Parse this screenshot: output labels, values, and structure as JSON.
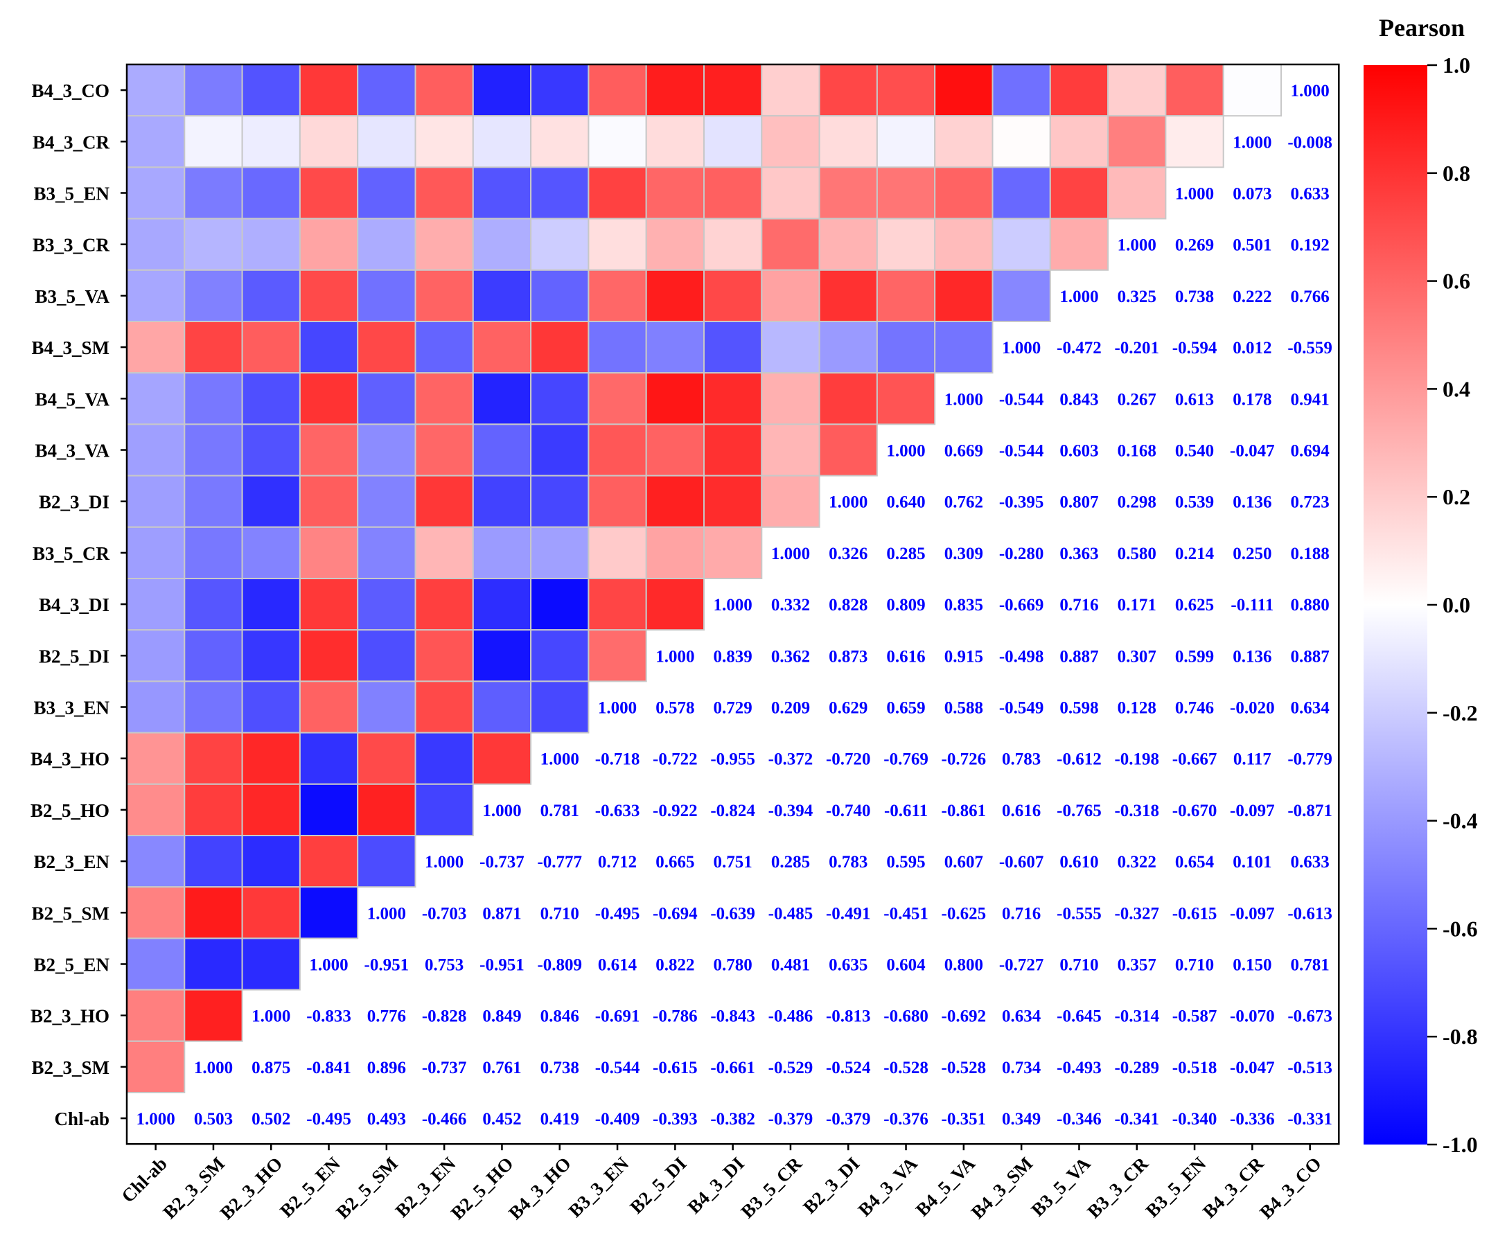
{
  "chart_data": {
    "type": "heatmap",
    "title": "",
    "legend_title": "Pearson",
    "colorbar": {
      "range": [
        -1.0,
        1.0
      ],
      "ticks": [
        "1.0",
        "0.8",
        "0.6",
        "0.4",
        "0.2",
        "0.0",
        "-0.2",
        "-0.4",
        "-0.6",
        "-0.8",
        "-1.0"
      ],
      "colors": {
        "negative": "#0000ff",
        "zero": "#ffffff",
        "positive": "#ff0000"
      }
    },
    "value_text_color": "#0000ff",
    "variables": [
      "Chl-ab",
      "B2_3_SM",
      "B2_3_HO",
      "B2_5_EN",
      "B2_5_SM",
      "B2_3_EN",
      "B2_5_HO",
      "B4_3_HO",
      "B3_3_EN",
      "B2_5_DI",
      "B4_3_DI",
      "B3_5_CR",
      "B2_3_DI",
      "B4_3_VA",
      "B4_5_VA",
      "B4_3_SM",
      "B3_5_VA",
      "B3_3_CR",
      "B3_5_EN",
      "B4_3_CR",
      "B4_3_CO"
    ],
    "matrix": [
      [
        1.0,
        0.503,
        0.502,
        -0.495,
        0.493,
        -0.466,
        0.452,
        0.419,
        -0.409,
        -0.393,
        -0.382,
        -0.379,
        -0.379,
        -0.376,
        -0.351,
        0.349,
        -0.346,
        -0.341,
        -0.34,
        -0.336,
        -0.331
      ],
      [
        0.503,
        1.0,
        0.875,
        -0.841,
        0.896,
        -0.737,
        0.761,
        0.738,
        -0.544,
        -0.615,
        -0.661,
        -0.529,
        -0.524,
        -0.528,
        -0.528,
        0.734,
        -0.493,
        -0.289,
        -0.518,
        -0.047,
        -0.513
      ],
      [
        0.502,
        0.875,
        1.0,
        -0.833,
        0.776,
        -0.828,
        0.849,
        0.846,
        -0.691,
        -0.786,
        -0.843,
        -0.486,
        -0.813,
        -0.68,
        -0.692,
        0.634,
        -0.645,
        -0.314,
        -0.587,
        -0.07,
        -0.673
      ],
      [
        -0.495,
        -0.841,
        -0.833,
        1.0,
        -0.951,
        0.753,
        -0.951,
        -0.809,
        0.614,
        0.822,
        0.78,
        0.481,
        0.635,
        0.604,
        0.8,
        -0.727,
        0.71,
        0.357,
        0.71,
        0.15,
        0.781
      ],
      [
        0.493,
        0.896,
        0.776,
        -0.951,
        1.0,
        -0.703,
        0.871,
        0.71,
        -0.495,
        -0.694,
        -0.639,
        -0.485,
        -0.491,
        -0.451,
        -0.625,
        0.716,
        -0.555,
        -0.327,
        -0.615,
        -0.097,
        -0.613
      ],
      [
        -0.466,
        -0.737,
        -0.828,
        0.753,
        -0.703,
        1.0,
        -0.737,
        -0.777,
        0.712,
        0.665,
        0.751,
        0.285,
        0.783,
        0.595,
        0.607,
        -0.607,
        0.61,
        0.322,
        0.654,
        0.101,
        0.633
      ],
      [
        0.452,
        0.761,
        0.849,
        -0.951,
        0.871,
        -0.737,
        1.0,
        0.781,
        -0.633,
        -0.922,
        -0.824,
        -0.394,
        -0.74,
        -0.611,
        -0.861,
        0.616,
        -0.765,
        -0.318,
        -0.67,
        -0.097,
        -0.871
      ],
      [
        0.419,
        0.738,
        0.846,
        -0.809,
        0.71,
        -0.777,
        0.781,
        1.0,
        -0.718,
        -0.722,
        -0.955,
        -0.372,
        -0.72,
        -0.769,
        -0.726,
        0.783,
        -0.612,
        -0.198,
        -0.667,
        0.117,
        -0.779
      ],
      [
        -0.409,
        -0.544,
        -0.691,
        0.614,
        -0.495,
        0.712,
        -0.633,
        -0.718,
        1.0,
        0.578,
        0.729,
        0.209,
        0.629,
        0.659,
        0.588,
        -0.549,
        0.598,
        0.128,
        0.746,
        -0.02,
        0.634
      ],
      [
        -0.393,
        -0.615,
        -0.786,
        0.822,
        -0.694,
        0.665,
        -0.922,
        -0.722,
        0.578,
        1.0,
        0.839,
        0.362,
        0.873,
        0.616,
        0.915,
        -0.498,
        0.887,
        0.307,
        0.599,
        0.136,
        0.887
      ],
      [
        -0.382,
        -0.661,
        -0.843,
        0.78,
        -0.639,
        0.751,
        -0.824,
        -0.955,
        0.729,
        0.839,
        1.0,
        0.332,
        0.828,
        0.809,
        0.835,
        -0.669,
        0.716,
        0.171,
        0.625,
        -0.111,
        0.88
      ],
      [
        -0.379,
        -0.529,
        -0.486,
        0.481,
        -0.485,
        0.285,
        -0.394,
        -0.372,
        0.209,
        0.362,
        0.332,
        1.0,
        0.326,
        0.285,
        0.309,
        -0.28,
        0.363,
        0.58,
        0.214,
        0.25,
        0.188
      ],
      [
        -0.379,
        -0.524,
        -0.813,
        0.635,
        -0.491,
        0.783,
        -0.74,
        -0.72,
        0.629,
        0.873,
        0.828,
        0.326,
        1.0,
        0.64,
        0.762,
        -0.395,
        0.807,
        0.298,
        0.539,
        0.136,
        0.723
      ],
      [
        -0.376,
        -0.528,
        -0.68,
        0.604,
        -0.451,
        0.595,
        -0.611,
        -0.769,
        0.659,
        0.616,
        0.809,
        0.285,
        0.64,
        1.0,
        0.669,
        -0.544,
        0.603,
        0.168,
        0.54,
        -0.047,
        0.694
      ],
      [
        -0.351,
        -0.528,
        -0.692,
        0.8,
        -0.625,
        0.607,
        -0.861,
        -0.726,
        0.588,
        0.915,
        0.835,
        0.309,
        0.762,
        0.669,
        1.0,
        -0.544,
        0.843,
        0.267,
        0.613,
        0.178,
        0.941
      ],
      [
        0.349,
        0.734,
        0.634,
        -0.727,
        0.716,
        -0.607,
        0.616,
        0.783,
        -0.549,
        -0.498,
        -0.669,
        -0.28,
        -0.395,
        -0.544,
        -0.544,
        1.0,
        -0.472,
        -0.201,
        -0.594,
        0.012,
        -0.559
      ],
      [
        -0.346,
        -0.493,
        -0.645,
        0.71,
        -0.555,
        0.61,
        -0.765,
        -0.612,
        0.598,
        0.887,
        0.716,
        0.363,
        0.807,
        0.603,
        0.843,
        -0.472,
        1.0,
        0.325,
        0.738,
        0.222,
        0.766
      ],
      [
        -0.341,
        -0.289,
        -0.314,
        0.357,
        -0.327,
        0.322,
        -0.318,
        -0.198,
        0.128,
        0.307,
        0.171,
        0.58,
        0.298,
        0.168,
        0.267,
        -0.201,
        0.325,
        1.0,
        0.269,
        0.501,
        0.192
      ],
      [
        -0.34,
        -0.518,
        -0.587,
        0.71,
        -0.615,
        0.654,
        -0.67,
        -0.667,
        0.746,
        0.599,
        0.625,
        0.214,
        0.539,
        0.54,
        0.613,
        -0.594,
        0.738,
        0.269,
        1.0,
        0.073,
        0.633
      ],
      [
        -0.336,
        -0.047,
        -0.07,
        0.15,
        -0.097,
        0.101,
        -0.097,
        0.117,
        -0.02,
        0.136,
        -0.111,
        0.25,
        0.136,
        -0.047,
        0.178,
        0.012,
        0.222,
        0.501,
        0.073,
        1.0,
        -0.008
      ],
      [
        -0.331,
        -0.513,
        -0.673,
        0.781,
        -0.613,
        0.633,
        -0.871,
        -0.779,
        0.634,
        0.887,
        0.88,
        0.188,
        0.723,
        0.694,
        0.941,
        -0.559,
        0.766,
        0.192,
        0.633,
        -0.008,
        1.0
      ]
    ],
    "layout": "lower-left triangle colored cells, upper-right triangle numeric values"
  }
}
